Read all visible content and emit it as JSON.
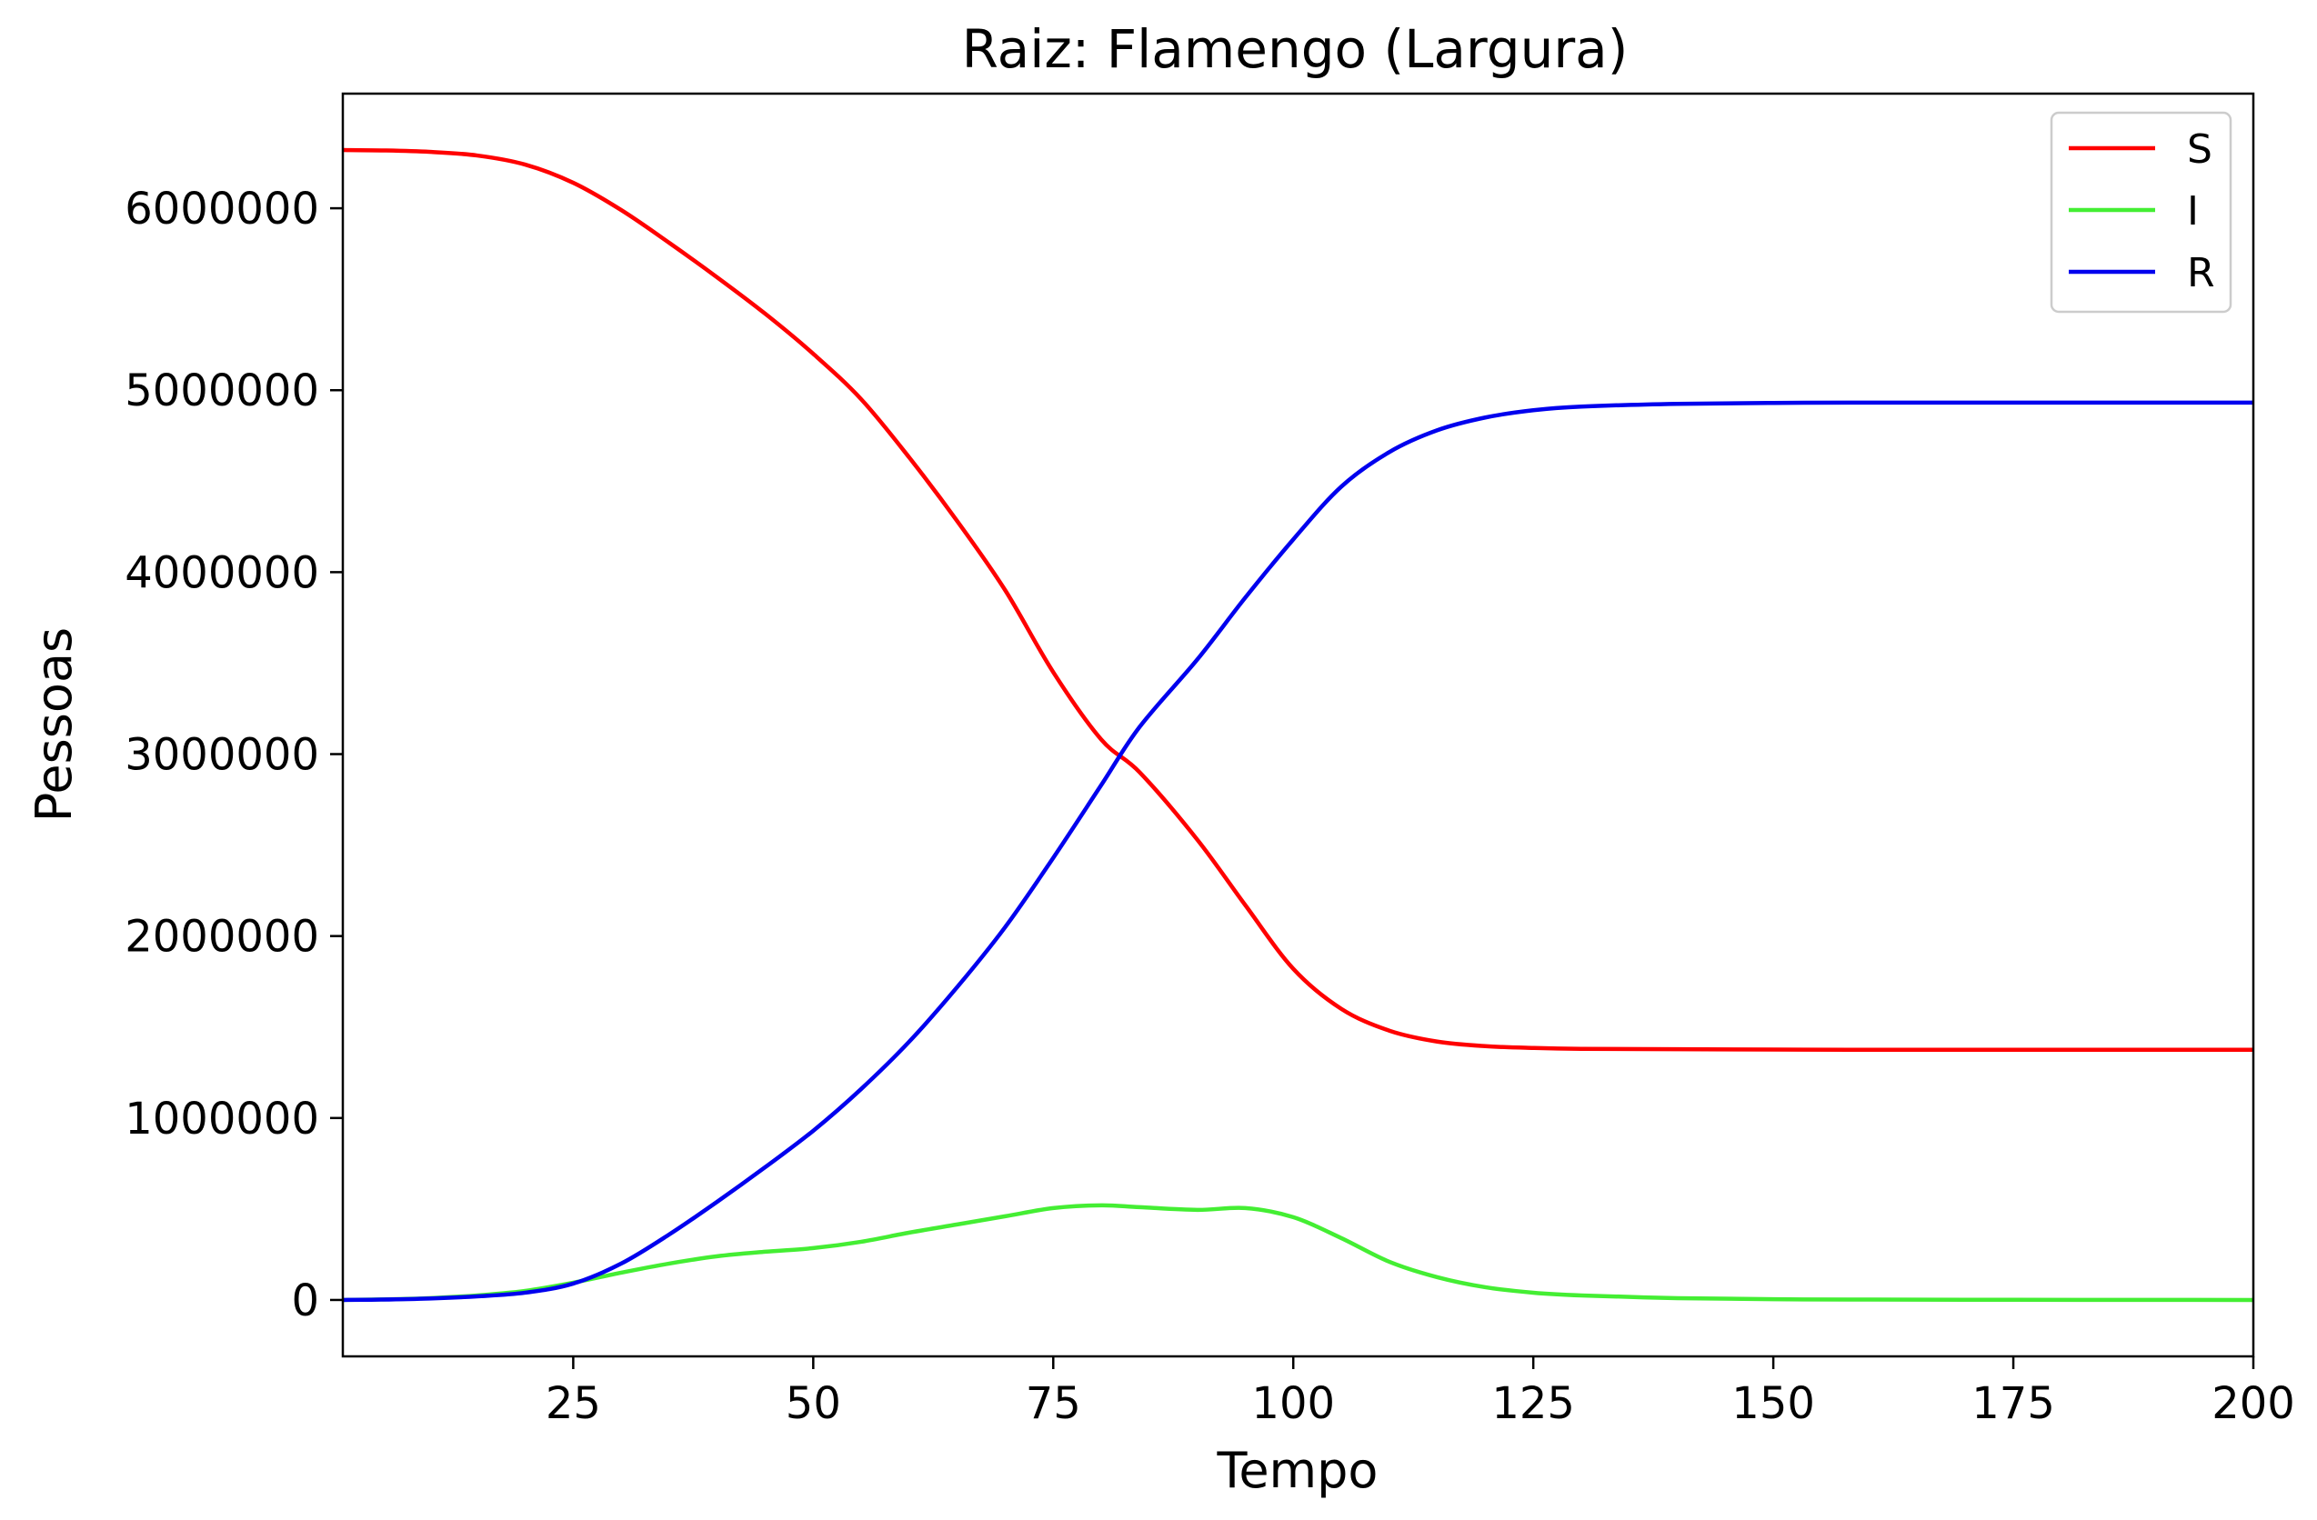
{
  "chart_data": {
    "type": "line",
    "title": "Raiz: Flamengo (Largura)",
    "xlabel": "Tempo",
    "ylabel": "Pessoas",
    "xlim": [
      1,
      200
    ],
    "ylim": [
      -310000,
      6630000
    ],
    "xticks": [
      25,
      50,
      75,
      100,
      125,
      150,
      175,
      200
    ],
    "yticks": [
      0,
      1000000,
      2000000,
      3000000,
      4000000,
      5000000,
      6000000
    ],
    "xtick_labels": [
      "25",
      "50",
      "75",
      "100",
      "125",
      "150",
      "175",
      "200"
    ],
    "ytick_labels": [
      "0",
      "1000000",
      "2000000",
      "3000000",
      "4000000",
      "5000000",
      "6000000"
    ],
    "grid": false,
    "legend_position": "top-right",
    "x": [
      1,
      5,
      10,
      15,
      20,
      25,
      30,
      35,
      40,
      45,
      50,
      55,
      60,
      65,
      70,
      75,
      80,
      84,
      90,
      95,
      100,
      105,
      110,
      115,
      120,
      125,
      130,
      140,
      150,
      160,
      175,
      200
    ],
    "series": [
      {
        "name": "S",
        "color": "#ff0000",
        "values": [
          6320000,
          6318000,
          6310000,
          6290000,
          6240000,
          6140000,
          5990000,
          5810000,
          5620000,
          5420000,
          5200000,
          4950000,
          4630000,
          4280000,
          3900000,
          3450000,
          3080000,
          2900000,
          2530000,
          2170000,
          1820000,
          1600000,
          1480000,
          1420000,
          1395000,
          1385000,
          1380000,
          1378000,
          1376000,
          1375000,
          1375000,
          1375000
        ]
      },
      {
        "name": "I",
        "color": "#44ee33",
        "values": [
          0,
          3000,
          10000,
          25000,
          50000,
          95000,
          150000,
          200000,
          240000,
          265000,
          285000,
          320000,
          370000,
          415000,
          460000,
          505000,
          520000,
          510000,
          495000,
          505000,
          455000,
          340000,
          210000,
          125000,
          70000,
          40000,
          25000,
          10000,
          4000,
          2000,
          1000,
          0
        ]
      },
      {
        "name": "R",
        "color": "#0000ee",
        "values": [
          0,
          2000,
          8000,
          20000,
          40000,
          90000,
          200000,
          360000,
          540000,
          730000,
          930000,
          1160000,
          1420000,
          1720000,
          2050000,
          2430000,
          2830000,
          3150000,
          3520000,
          3860000,
          4180000,
          4470000,
          4660000,
          4780000,
          4850000,
          4890000,
          4910000,
          4925000,
          4930000,
          4932000,
          4932000,
          4932000
        ]
      }
    ]
  }
}
